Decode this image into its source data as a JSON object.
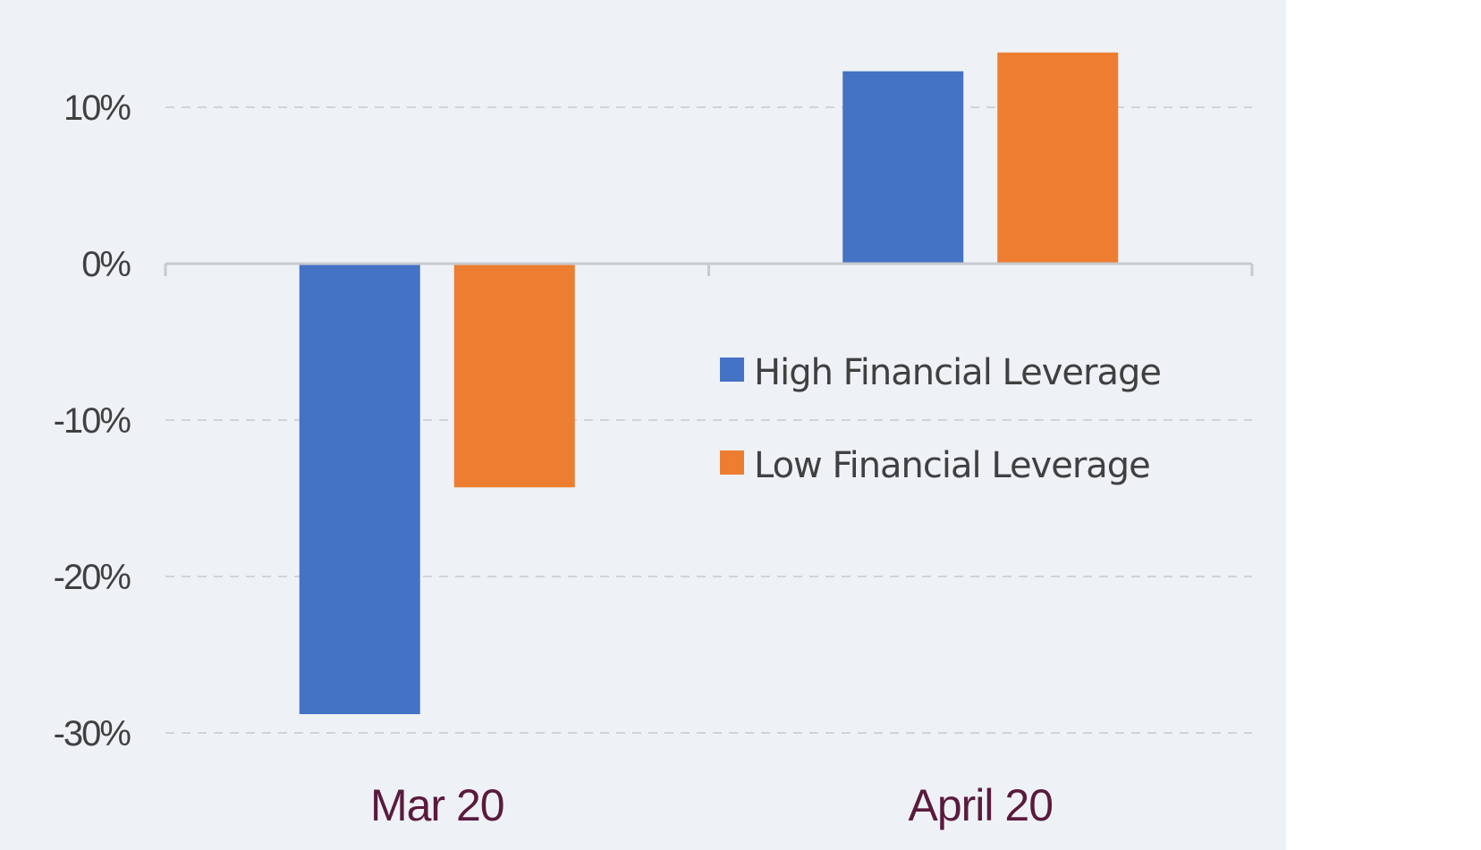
{
  "chart_data": {
    "type": "bar",
    "categories": [
      "Mar 20",
      "April 20"
    ],
    "series": [
      {
        "name": "High Financial Leverage",
        "values": [
          -28.8,
          12.3
        ],
        "color": "#4472c4"
      },
      {
        "name": "Low Financial Leverage",
        "values": [
          -14.3,
          13.5
        ],
        "color": "#ed7d31"
      }
    ],
    "ylim": [
      -30,
      10
    ],
    "yticks": [
      10,
      0,
      -10,
      -20,
      -30
    ],
    "ytick_labels": [
      "10%",
      "0%",
      "-10%",
      "-20%",
      "-30%"
    ],
    "grid": true,
    "legend_position": "center-right",
    "title": "",
    "xlabel": "",
    "ylabel": ""
  }
}
